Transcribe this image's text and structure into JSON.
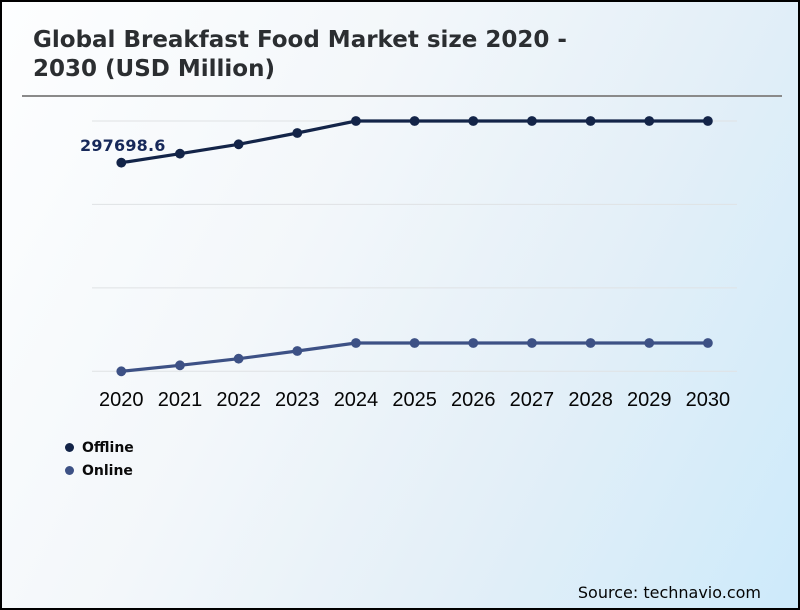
{
  "footer": {
    "source": "Source: technavio.com"
  },
  "chart_data": {
    "type": "line",
    "title": "Global Breakfast Food Market size 2020 - 2030 (USD Million)",
    "title_lines": [
      "Global Breakfast Food Market size 2020 -",
      "2030 (USD Million)"
    ],
    "categories": [
      "2020",
      "2021",
      "2022",
      "2023",
      "2024",
      "2025",
      "2026",
      "2027",
      "2028",
      "2029",
      "2030"
    ],
    "series": [
      {
        "name": "Offline",
        "color": "#132448",
        "values": [
          297698.6,
          309400,
          321600,
          336260,
          351840,
          351840,
          351840,
          351840,
          351840,
          351840,
          351840
        ]
      },
      {
        "name": "Online",
        "color": "#3d5185",
        "values": [
          26875,
          34665,
          43230,
          53230,
          63615,
          63615,
          63615,
          63615,
          63615,
          63615,
          63615
        ]
      }
    ],
    "data_labels": [
      {
        "series": "Offline",
        "category": "2020",
        "text": "297698.6"
      }
    ],
    "unlabeled_values_estimated": true,
    "xlabel": "",
    "ylabel": "",
    "ylim": [
      0,
      363500
    ],
    "y_axis_labels_visible": false,
    "grid": true,
    "legend_position": "bottom-left"
  }
}
